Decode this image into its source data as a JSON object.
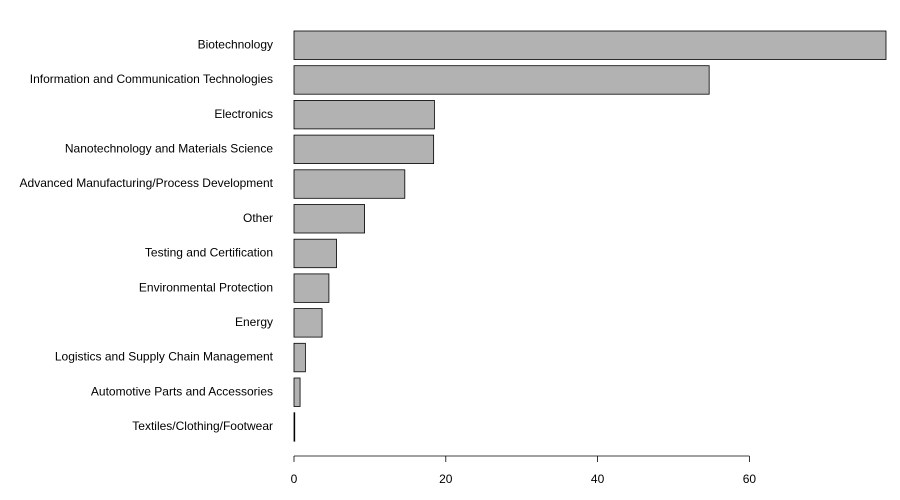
{
  "chart_data": {
    "type": "bar",
    "orientation": "horizontal",
    "categories": [
      "Biotechnology",
      "Information and Communication Technologies",
      "Electronics",
      "Nanotechnology and Materials Science",
      "Advanced Manufacturing/Process Development",
      "Other",
      "Testing and Certification",
      "Environmental Protection",
      "Energy",
      "Logistics and Supply Chain Management",
      "Automotive Parts and Accessories",
      "Textiles/Clothing/Footwear"
    ],
    "values": [
      78,
      54.7,
      18.5,
      18.4,
      14.6,
      9.3,
      5.6,
      4.6,
      3.7,
      1.5,
      0.8,
      0.1
    ],
    "xlim": [
      0,
      78
    ],
    "xticks": [
      0,
      20,
      40,
      60
    ],
    "title": "",
    "xlabel": "",
    "ylabel": "",
    "grid": false,
    "colors": {
      "bar_fill": "#b2b2b2",
      "bar_stroke": "#000000",
      "axis": "#000000"
    }
  }
}
